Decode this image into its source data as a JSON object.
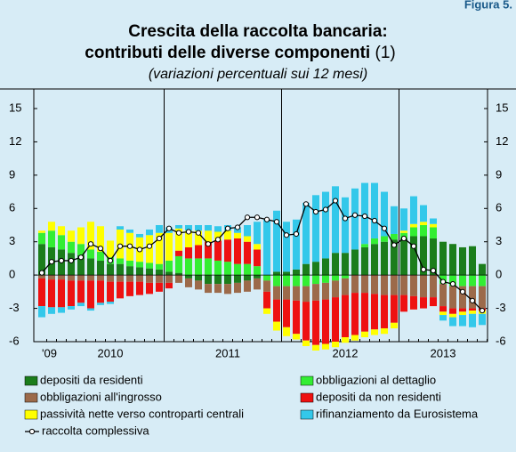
{
  "chart_data": {
    "type": "bar",
    "figure_label": "Figura 5.",
    "title": [
      "Crescita della raccolta bancaria:",
      "contributi delle diverse componenti"
    ],
    "title_note": "(1)",
    "subtitle": "(variazioni percentuali sui 12 mesi)",
    "categories": [
      "'09",
      null,
      null,
      null,
      null,
      null,
      null,
      "2010",
      null,
      null,
      null,
      null,
      null,
      null,
      null,
      null,
      null,
      null,
      null,
      "2011",
      null,
      null,
      null,
      null,
      null,
      null,
      null,
      null,
      null,
      null,
      null,
      "2012",
      null,
      null,
      null,
      null,
      null,
      null,
      null,
      null,
      null,
      "2013",
      null,
      null,
      null,
      null
    ],
    "ylim": [
      -6,
      15
    ],
    "yticks": [
      -6,
      -3,
      0,
      3,
      6,
      9,
      12,
      15
    ],
    "stacked": true,
    "series": [
      {
        "name": "depositi da residenti",
        "color": "#1b7d1b",
        "values": [
          2.8,
          2.5,
          2.3,
          2.0,
          1.8,
          1.5,
          1.3,
          1.0,
          1.0,
          0.8,
          0.7,
          0.6,
          0.5,
          0.3,
          0.2,
          -0.3,
          -0.5,
          -0.8,
          -0.8,
          -0.8,
          -0.7,
          -0.5,
          -0.3,
          0.0,
          0.3,
          0.3,
          0.5,
          1.0,
          1.2,
          1.5,
          2.0,
          2.0,
          2.3,
          2.5,
          2.8,
          3.0,
          3.2,
          3.3,
          3.5,
          3.5,
          3.3,
          3.0,
          2.8,
          2.5,
          2.6,
          1.0
        ]
      },
      {
        "name": "obbligazioni al dettaglio",
        "color": "#33ee33",
        "values": [
          1.0,
          1.5,
          1.3,
          1.0,
          1.0,
          0.8,
          0.8,
          0.6,
          0.5,
          0.5,
          0.5,
          0.5,
          0.5,
          1.0,
          1.5,
          1.5,
          1.5,
          1.5,
          1.3,
          1.2,
          1.0,
          1.0,
          0.8,
          -0.5,
          -1.0,
          -1.0,
          -1.0,
          -1.0,
          -0.8,
          -0.7,
          -0.5,
          -0.3,
          0.0,
          0.3,
          0.5,
          0.5,
          0.5,
          0.5,
          0.8,
          1.0,
          1.0,
          -0.8,
          -1.0,
          -1.0,
          -1.0,
          -1.0
        ]
      },
      {
        "name": "obbligazioni all'ingrosso",
        "color": "#9c6a4a",
        "values": [
          -0.3,
          -0.4,
          -0.4,
          -0.5,
          -0.5,
          -0.5,
          -0.5,
          -0.6,
          -0.6,
          -0.6,
          -0.6,
          -0.7,
          -0.7,
          -0.7,
          -0.7,
          -0.8,
          -0.8,
          -0.8,
          -0.8,
          -0.9,
          -0.9,
          -1.0,
          -1.0,
          -1.0,
          -1.2,
          -1.2,
          -1.3,
          -1.4,
          -1.5,
          -1.5,
          -1.5,
          -1.5,
          -1.6,
          -1.6,
          -1.7,
          -1.8,
          -1.8,
          -1.8,
          -1.9,
          -2.0,
          -2.0,
          -2.0,
          -2.0,
          -2.0,
          -2.0,
          -2.0
        ]
      },
      {
        "name": "depositi da non residenti",
        "color": "#ee1111",
        "values": [
          -2.5,
          -2.5,
          -2.5,
          -2.3,
          -2.0,
          -2.5,
          -2.0,
          -1.8,
          -1.5,
          -1.3,
          -1.2,
          -1.0,
          -0.8,
          -0.5,
          0.5,
          1.0,
          1.2,
          1.5,
          1.8,
          2.0,
          2.3,
          2.0,
          1.5,
          -1.5,
          -2.0,
          -2.5,
          -3.0,
          -3.5,
          -4.0,
          -4.0,
          -4.0,
          -3.8,
          -3.8,
          -3.5,
          -3.2,
          -3.0,
          -2.5,
          -1.5,
          -1.2,
          -1.0,
          -0.8,
          -0.5,
          -0.5,
          -0.3,
          -0.2,
          -0.2
        ]
      },
      {
        "name": "passività nette verso controparti centrali",
        "color": "#ffff00",
        "values": [
          0.2,
          0.8,
          0.8,
          1.0,
          1.5,
          2.5,
          2.3,
          1.5,
          2.6,
          2.5,
          2.2,
          2.5,
          2.8,
          2.5,
          2.0,
          1.5,
          1.3,
          1.0,
          0.8,
          0.8,
          0.5,
          0.5,
          0.5,
          -0.5,
          -0.8,
          -0.8,
          -0.5,
          -0.5,
          -0.5,
          -0.5,
          -0.5,
          -0.5,
          -0.5,
          -0.5,
          -0.5,
          -0.5,
          -0.5,
          0.2,
          0.3,
          0.3,
          0.3,
          -0.3,
          -0.3,
          -0.3,
          -0.3,
          -0.3
        ]
      },
      {
        "name": "rifinanziamento da Eurosistema",
        "color": "#33c8ea",
        "values": [
          -1.0,
          -0.6,
          -0.5,
          -0.3,
          -0.3,
          -0.2,
          -0.2,
          -0.2,
          0.3,
          0.3,
          0.3,
          0.5,
          0.7,
          0.5,
          0.3,
          0.5,
          0.5,
          0.5,
          0.5,
          0.5,
          0.5,
          1.0,
          2.0,
          5.0,
          5.5,
          4.5,
          4.5,
          5.5,
          6.0,
          6.0,
          6.0,
          5.0,
          5.5,
          5.5,
          5.0,
          4.0,
          2.5,
          2.0,
          2.5,
          1.5,
          0.5,
          -0.5,
          -0.8,
          -1.0,
          -1.2,
          -1.0
        ]
      }
    ],
    "line_series": {
      "name": "raccolta complessiva",
      "color": "#000000",
      "values": [
        0.2,
        1.2,
        1.3,
        1.3,
        1.6,
        2.8,
        2.4,
        1.3,
        2.6,
        2.6,
        2.3,
        2.6,
        3.3,
        4.2,
        3.8,
        3.9,
        3.8,
        2.8,
        3.2,
        4.2,
        4.3,
        5.2,
        5.2,
        5.0,
        4.8,
        3.6,
        3.7,
        6.4,
        5.7,
        5.9,
        6.7,
        5.1,
        5.4,
        5.3,
        4.9,
        4.2,
        2.7,
        3.3,
        2.6,
        0.5,
        0.4,
        -0.6,
        -0.8,
        -1.5,
        -2.3,
        -3.2
      ]
    }
  }
}
